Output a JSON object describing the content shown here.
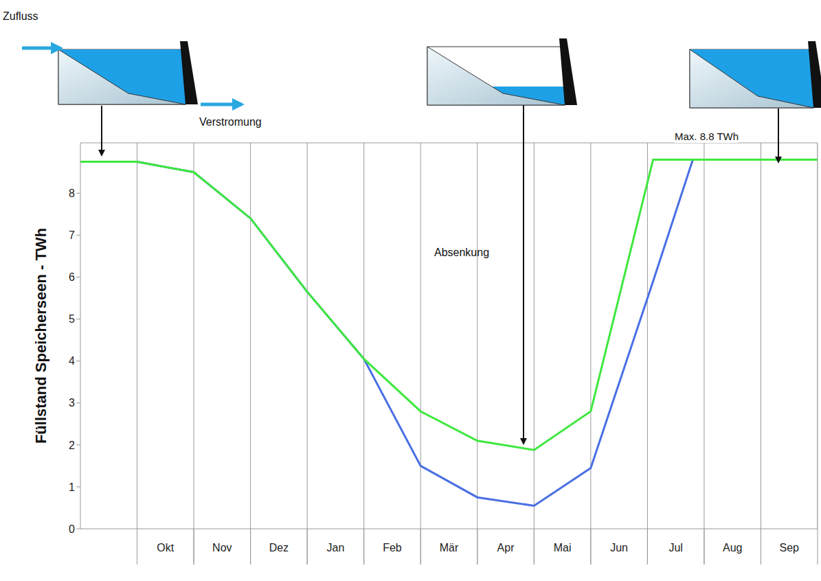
{
  "chart_data": {
    "type": "line",
    "y_label": "Füllstand Speicherseen - TWh",
    "annotations": [
      "Zufluss",
      "Verstromung",
      "Absenkung",
      "Max. 8.8 TWh"
    ],
    "x": [
      0,
      1,
      2,
      3,
      4,
      5,
      6,
      7,
      8,
      9,
      10.1,
      10.8,
      13
    ],
    "xlim": [
      0,
      13
    ],
    "xticks": [
      {
        "value": 1.5,
        "label": "Okt"
      },
      {
        "value": 2.5,
        "label": "Nov"
      },
      {
        "value": 3.5,
        "label": "Dez"
      },
      {
        "value": 4.5,
        "label": "Jan"
      },
      {
        "value": 5.5,
        "label": "Feb"
      },
      {
        "value": 6.5,
        "label": "Mär"
      },
      {
        "value": 7.5,
        "label": "Apr"
      },
      {
        "value": 8.5,
        "label": "Mai"
      },
      {
        "value": 9.5,
        "label": "Jun"
      },
      {
        "value": 10.5,
        "label": "Jul"
      },
      {
        "value": 11.5,
        "label": "Aug"
      },
      {
        "value": 12.5,
        "label": "Sep"
      }
    ],
    "ylim": [
      0,
      9.2
    ],
    "yticks": [
      0,
      1,
      2,
      3,
      4,
      5,
      6,
      7,
      8
    ],
    "grid": true,
    "series": [
      {
        "color": "#4a6fe3",
        "values": [
          8.75,
          8.75,
          8.5,
          7.4,
          5.65,
          4.05,
          1.5,
          0.75,
          0.55,
          1.45,
          5.9,
          8.8,
          8.8
        ]
      },
      {
        "color": "#3ee83e",
        "values": [
          8.75,
          8.75,
          8.5,
          7.4,
          5.65,
          4.05,
          2.8,
          2.1,
          1.88,
          2.8,
          8.8,
          8.8,
          8.8
        ]
      }
    ]
  }
}
